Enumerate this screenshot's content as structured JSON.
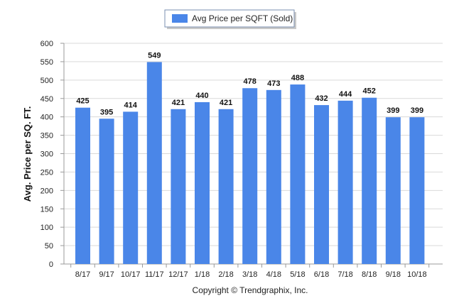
{
  "chart_data": {
    "type": "bar",
    "title": "",
    "legend": {
      "position": "top-center",
      "entries": [
        "Avg Price per SQFT (Sold)"
      ]
    },
    "series": [
      {
        "name": "Avg Price per SQFT (Sold)",
        "color": "#4a86e8",
        "values": [
          425,
          395,
          414,
          549,
          421,
          440,
          421,
          478,
          473,
          488,
          432,
          444,
          452,
          399,
          399
        ]
      }
    ],
    "categories": [
      "8/17",
      "9/17",
      "10/17",
      "11/17",
      "12/17",
      "1/18",
      "2/18",
      "3/18",
      "4/18",
      "5/18",
      "6/18",
      "7/18",
      "8/18",
      "9/18",
      "10/18"
    ],
    "xlabel": "",
    "ylabel": "Avg. Price per SQ. FT.",
    "ylim": [
      0,
      600
    ],
    "yticks": [
      0,
      50,
      100,
      150,
      200,
      250,
      300,
      350,
      400,
      450,
      500,
      550,
      600
    ],
    "grid": true,
    "data_labels": true
  },
  "footer": "Copyright © Trendgraphix, Inc."
}
